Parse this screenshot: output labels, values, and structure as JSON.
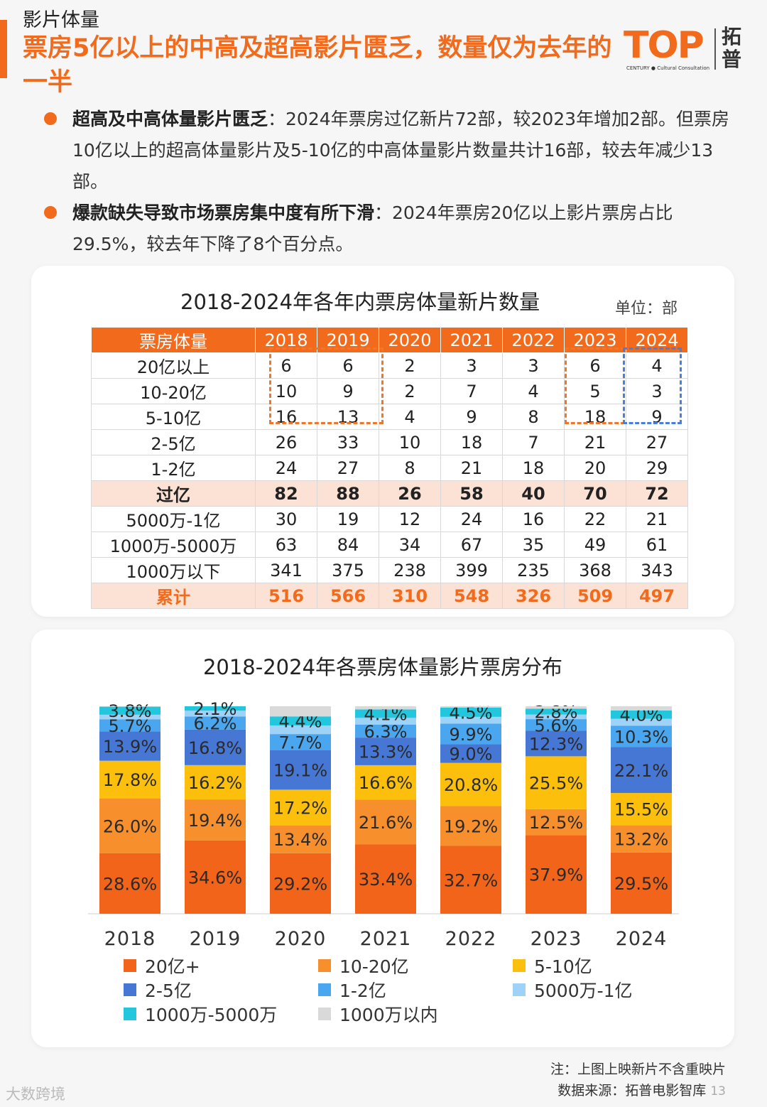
{
  "header": {
    "section": "影片体量",
    "headline": "票房5亿以上的中高及超高影片匮乏，数量仅为去年的一半",
    "logo": {
      "mark": "TOP",
      "sub": "CENTURY ● Cultural Consultation",
      "cn": "拓普"
    }
  },
  "bullets": [
    {
      "lead": "超高及中高体量影片匮乏",
      "text": "：2024年票房过亿新片72部，较2023年增加2部。但票房10亿以上的超高体量影片及5-10亿的中高体量影片数量共计16部，较去年减少13部。"
    },
    {
      "lead": "爆款缺失导致市场票房集中度有所下滑",
      "text": "：2024年票房20亿以上影片票房占比29.5%，较去年下降了8个百分点。"
    }
  ],
  "chart_data": [
    {
      "type": "table",
      "title": "2018-2024年各年内票房体量新片数量",
      "unit": "单位：部",
      "columns": [
        "票房体量",
        "2018",
        "2019",
        "2020",
        "2021",
        "2022",
        "2023",
        "2024"
      ],
      "rows": [
        {
          "label": "20亿以上",
          "values": [
            "6",
            "6",
            "2",
            "3",
            "3",
            "6",
            "4"
          ]
        },
        {
          "label": "10-20亿",
          "values": [
            "10",
            "9",
            "2",
            "7",
            "4",
            "5",
            "3"
          ]
        },
        {
          "label": "5-10亿",
          "values": [
            "16",
            "13",
            "4",
            "9",
            "8",
            "18",
            "9"
          ]
        },
        {
          "label": "2-5亿",
          "values": [
            "26",
            "33",
            "10",
            "18",
            "7",
            "21",
            "27"
          ]
        },
        {
          "label": "1-2亿",
          "values": [
            "24",
            "27",
            "8",
            "21",
            "18",
            "20",
            "29"
          ]
        },
        {
          "label": "过亿",
          "values": [
            "82",
            "88",
            "26",
            "58",
            "40",
            "70",
            "72"
          ]
        },
        {
          "label": "5000万-1亿",
          "values": [
            "30",
            "19",
            "12",
            "24",
            "16",
            "22",
            "21"
          ]
        },
        {
          "label": "1000万-5000万",
          "values": [
            "63",
            "84",
            "34",
            "67",
            "35",
            "49",
            "61"
          ]
        },
        {
          "label": "1000万以下",
          "values": [
            "341",
            "375",
            "238",
            "399",
            "235",
            "368",
            "343"
          ]
        },
        {
          "label": "累计",
          "values": [
            "516",
            "566",
            "310",
            "548",
            "326",
            "509",
            "497"
          ]
        }
      ]
    },
    {
      "type": "bar",
      "stacked": true,
      "title": "2018-2024年各票房体量影片票房分布",
      "categories": [
        "2018",
        "2019",
        "2020",
        "2021",
        "2022",
        "2023",
        "2024"
      ],
      "ylim": [
        0,
        100
      ],
      "series": [
        {
          "name": "20亿+",
          "color": "#f26419",
          "values": [
            28.6,
            34.6,
            29.2,
            33.4,
            32.7,
            37.9,
            29.5
          ],
          "labels": [
            "28.6%",
            "34.6%",
            "29.2%",
            "33.4%",
            "32.7%",
            "37.9%",
            "29.5%"
          ]
        },
        {
          "name": "10-20亿",
          "color": "#f7902c",
          "values": [
            26.0,
            19.4,
            13.4,
            21.6,
            19.2,
            12.5,
            13.2
          ],
          "labels": [
            "26.0%",
            "19.4%",
            "13.4%",
            "21.6%",
            "19.2%",
            "12.5%",
            "13.2%"
          ]
        },
        {
          "name": "5-10亿",
          "color": "#fcc00c",
          "values": [
            17.8,
            16.2,
            17.2,
            16.6,
            20.8,
            25.5,
            15.5
          ],
          "labels": [
            "17.8%",
            "16.2%",
            "17.2%",
            "16.6%",
            "20.8%",
            "25.5%",
            "15.5%"
          ]
        },
        {
          "name": "2-5亿",
          "color": "#4677d5",
          "values": [
            13.9,
            16.8,
            19.1,
            13.3,
            9.0,
            12.3,
            22.1
          ],
          "labels": [
            "13.9%",
            "16.8%",
            "19.1%",
            "13.3%",
            "9.0%",
            "12.3%",
            "22.1%"
          ]
        },
        {
          "name": "1-2亿",
          "color": "#4aa6ee",
          "values": [
            5.7,
            6.2,
            7.7,
            6.3,
            9.9,
            5.6,
            10.3
          ],
          "labels": [
            "5.7%",
            "6.2%",
            "7.7%",
            "6.3%",
            "9.9%",
            "5.6%",
            "10.3%"
          ]
        },
        {
          "name": "5000万-1亿",
          "color": "#9fd2f7",
          "values": [
            2.2,
            2.7,
            4.1,
            3.2,
            3.3,
            2.2,
            3.4
          ],
          "labels": [
            "",
            "",
            "",
            "",
            "",
            "",
            ""
          ]
        },
        {
          "name": "1000万-5000万",
          "color": "#22c6dd",
          "values": [
            3.8,
            2.1,
            4.4,
            4.1,
            4.5,
            2.8,
            4.0
          ],
          "labels": [
            "3.8%",
            "2.1%",
            "4.4%",
            "4.1%",
            "4.5%",
            "2.8%",
            "4.0%"
          ]
        },
        {
          "name": "1000万以内",
          "color": "#d9d9d9",
          "values": [
            0.2,
            0.0,
            4.9,
            1.5,
            0.6,
            1.2,
            2.0
          ],
          "labels": [
            "",
            "",
            "",
            "",
            "",
            "",
            ""
          ]
        }
      ],
      "legend": "bottom"
    }
  ],
  "footer": {
    "note": "注：上图上映新片不含重映片",
    "source": "数据来源：拓普电影智库",
    "page": "13",
    "watermark": "大数跨境"
  }
}
